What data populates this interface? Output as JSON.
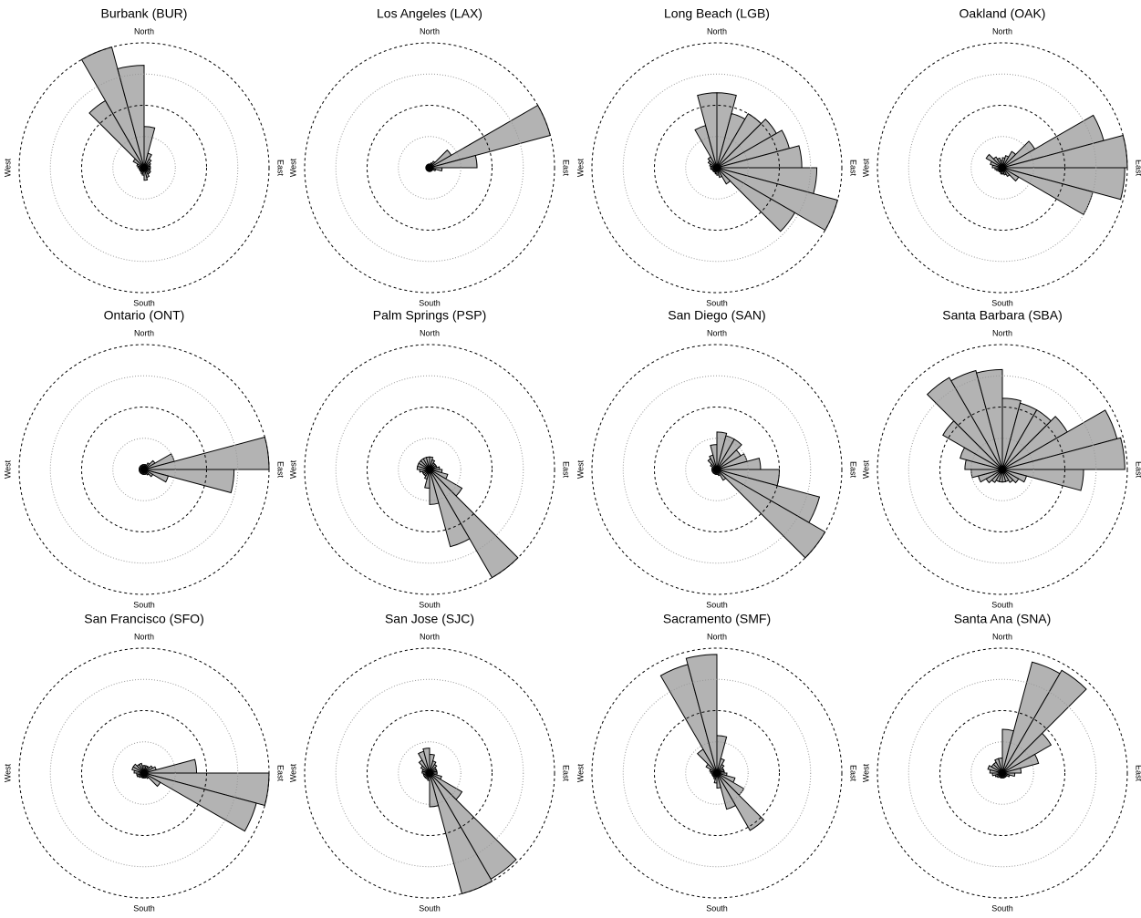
{
  "chart_data": [
    {
      "type": "rose",
      "title": "Burbank (BUR)",
      "direction_labels": [
        "North",
        "East",
        "South",
        "West"
      ],
      "color": "#b3b3b3",
      "xlim": [
        0,
        360
      ],
      "rlim": [
        0,
        1
      ],
      "rticks": [
        0.25,
        0.5,
        0.75,
        1
      ],
      "values": [
        0.33,
        0.12,
        0.08,
        0.06,
        0.05,
        0.05,
        0.05,
        0.05,
        0.06,
        0.06,
        0.08,
        0.1,
        0.06,
        0.05,
        0.04,
        0.04,
        0.04,
        0.04,
        0.05,
        0.06,
        0.1,
        0.62,
        1.0,
        0.82
      ]
    },
    {
      "type": "rose",
      "title": "Los Angeles (LAX)",
      "direction_labels": [
        "North",
        "East",
        "South",
        "West"
      ],
      "color": "#b3b3b3",
      "xlim": [
        0,
        360
      ],
      "rlim": [
        0,
        1
      ],
      "rticks": [
        0.25,
        0.5,
        0.75,
        1
      ],
      "values": [
        0.03,
        0.04,
        0.06,
        0.2,
        1.0,
        0.38,
        0.1,
        0.05,
        0.03,
        0.03,
        0.03,
        0.03,
        0.03,
        0.03,
        0.03,
        0.03,
        0.03,
        0.03,
        0.03,
        0.03,
        0.03,
        0.03,
        0.03,
        0.03
      ]
    },
    {
      "type": "rose",
      "title": "Long Beach (LGB)",
      "direction_labels": [
        "North",
        "East",
        "South",
        "West"
      ],
      "color": "#b3b3b3",
      "xlim": [
        0,
        360
      ],
      "rlim": [
        0,
        1
      ],
      "rticks": [
        0.25,
        0.5,
        0.75,
        1
      ],
      "values": [
        0.6,
        0.45,
        0.5,
        0.55,
        0.6,
        0.68,
        0.8,
        1.0,
        0.72,
        0.15,
        0.08,
        0.06,
        0.05,
        0.04,
        0.04,
        0.04,
        0.04,
        0.05,
        0.05,
        0.06,
        0.08,
        0.1,
        0.35,
        0.6
      ]
    },
    {
      "type": "rose",
      "title": "Oakland (OAK)",
      "direction_labels": [
        "North",
        "East",
        "South",
        "West"
      ],
      "color": "#b3b3b3",
      "xlim": [
        0,
        360
      ],
      "rlim": [
        0,
        1
      ],
      "rticks": [
        0.25,
        0.5,
        0.75,
        1
      ],
      "values": [
        0.08,
        0.1,
        0.15,
        0.3,
        0.84,
        1.0,
        0.98,
        0.75,
        0.15,
        0.08,
        0.06,
        0.05,
        0.05,
        0.04,
        0.04,
        0.04,
        0.05,
        0.06,
        0.08,
        0.1,
        0.15,
        0.1,
        0.08,
        0.06
      ]
    },
    {
      "type": "rose",
      "title": "Ontario (ONT)",
      "direction_labels": [
        "North",
        "East",
        "South",
        "West"
      ],
      "color": "#b3b3b3",
      "xlim": [
        0,
        360
      ],
      "rlim": [
        0,
        1
      ],
      "rticks": [
        0.25,
        0.5,
        0.75,
        1
      ],
      "values": [
        0.04,
        0.04,
        0.06,
        0.1,
        0.25,
        1.0,
        0.72,
        0.2,
        0.08,
        0.05,
        0.04,
        0.04,
        0.04,
        0.04,
        0.04,
        0.04,
        0.04,
        0.04,
        0.04,
        0.04,
        0.04,
        0.04,
        0.04,
        0.04
      ]
    },
    {
      "type": "rose",
      "title": "Palm Springs (PSP)",
      "direction_labels": [
        "North",
        "East",
        "South",
        "West"
      ],
      "color": "#b3b3b3",
      "xlim": [
        0,
        360
      ],
      "rlim": [
        0,
        1
      ],
      "rticks": [
        0.25,
        0.5,
        0.75,
        1
      ],
      "values": [
        0.1,
        0.08,
        0.06,
        0.06,
        0.06,
        0.08,
        0.1,
        0.15,
        0.3,
        1.0,
        0.64,
        0.28,
        0.15,
        0.08,
        0.06,
        0.06,
        0.06,
        0.08,
        0.1,
        0.1,
        0.1,
        0.1,
        0.1,
        0.1
      ]
    },
    {
      "type": "rose",
      "title": "San Diego (SAN)",
      "direction_labels": [
        "North",
        "East",
        "South",
        "West"
      ],
      "color": "#b3b3b3",
      "xlim": [
        0,
        360
      ],
      "rlim": [
        0,
        1
      ],
      "rticks": [
        0.25,
        0.5,
        0.75,
        1
      ],
      "values": [
        0.3,
        0.28,
        0.28,
        0.22,
        0.25,
        0.35,
        0.5,
        0.85,
        1.0,
        0.1,
        0.05,
        0.04,
        0.04,
        0.04,
        0.04,
        0.04,
        0.04,
        0.04,
        0.04,
        0.04,
        0.06,
        0.1,
        0.12,
        0.2
      ]
    },
    {
      "type": "rose",
      "title": "Santa Barbara (SBA)",
      "direction_labels": [
        "North",
        "East",
        "South",
        "West"
      ],
      "color": "#b3b3b3",
      "xlim": [
        0,
        360
      ],
      "rlim": [
        0,
        1
      ],
      "rticks": [
        0.25,
        0.5,
        0.75,
        1
      ],
      "values": [
        0.57,
        0.55,
        0.55,
        0.6,
        0.95,
        0.98,
        0.65,
        0.2,
        0.15,
        0.12,
        0.1,
        0.1,
        0.1,
        0.1,
        0.12,
        0.15,
        0.2,
        0.25,
        0.3,
        0.35,
        0.55,
        0.85,
        0.82,
        0.8
      ]
    },
    {
      "type": "rose",
      "title": "San Francisco (SFO)",
      "direction_labels": [
        "North",
        "East",
        "South",
        "West"
      ],
      "color": "#b3b3b3",
      "xlim": [
        0,
        360
      ],
      "rlim": [
        0,
        1
      ],
      "rticks": [
        0.25,
        0.5,
        0.75,
        1
      ],
      "values": [
        0.06,
        0.06,
        0.06,
        0.08,
        0.1,
        0.42,
        1.0,
        0.93,
        0.15,
        0.05,
        0.04,
        0.04,
        0.04,
        0.04,
        0.04,
        0.05,
        0.06,
        0.06,
        0.08,
        0.1,
        0.1,
        0.08,
        0.08,
        0.06
      ]
    },
    {
      "type": "rose",
      "title": "San Jose (SJC)",
      "direction_labels": [
        "North",
        "East",
        "South",
        "West"
      ],
      "color": "#b3b3b3",
      "xlim": [
        0,
        360
      ],
      "rlim": [
        0,
        1
      ],
      "rticks": [
        0.25,
        0.5,
        0.75,
        1
      ],
      "values": [
        0.15,
        0.1,
        0.08,
        0.06,
        0.06,
        0.06,
        0.06,
        0.1,
        0.3,
        0.98,
        1.0,
        0.27,
        0.06,
        0.05,
        0.05,
        0.05,
        0.05,
        0.05,
        0.06,
        0.06,
        0.08,
        0.12,
        0.18,
        0.2
      ]
    },
    {
      "type": "rose",
      "title": "Sacramento (SMF)",
      "direction_labels": [
        "North",
        "East",
        "South",
        "West"
      ],
      "color": "#b3b3b3",
      "xlim": [
        0,
        360
      ],
      "rlim": [
        0,
        1
      ],
      "rticks": [
        0.25,
        0.5,
        0.75,
        1
      ],
      "values": [
        0.3,
        0.12,
        0.08,
        0.06,
        0.06,
        0.06,
        0.08,
        0.15,
        0.25,
        0.53,
        0.3,
        0.12,
        0.08,
        0.05,
        0.04,
        0.04,
        0.04,
        0.04,
        0.05,
        0.06,
        0.1,
        0.22,
        0.9,
        0.95
      ]
    },
    {
      "type": "rose",
      "title": "Santa Ana (SNA)",
      "direction_labels": [
        "North",
        "East",
        "South",
        "West"
      ],
      "color": "#b3b3b3",
      "xlim": [
        0,
        360
      ],
      "rlim": [
        0,
        1
      ],
      "rticks": [
        0.25,
        0.5,
        0.75,
        1
      ],
      "values": [
        0.35,
        0.92,
        0.95,
        0.45,
        0.3,
        0.15,
        0.1,
        0.06,
        0.04,
        0.04,
        0.04,
        0.04,
        0.04,
        0.04,
        0.04,
        0.05,
        0.06,
        0.08,
        0.1,
        0.12,
        0.1,
        0.1,
        0.12,
        0.12
      ]
    }
  ]
}
